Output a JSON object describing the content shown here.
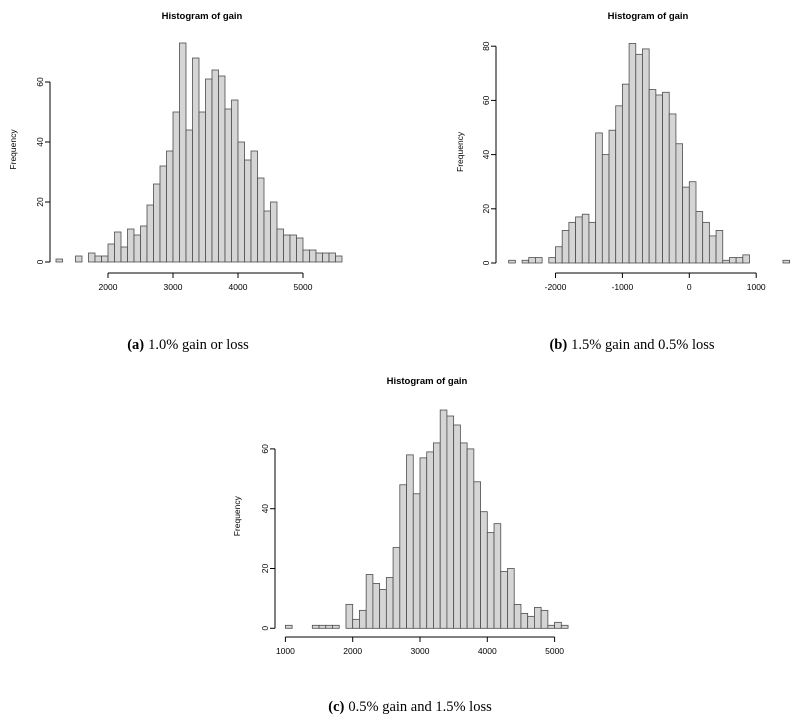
{
  "figure": {
    "background": "#ffffff",
    "bar_fill": "#d5d5d5",
    "bar_stroke": "#4d4d4d",
    "axis_color": "#000000",
    "text_color": "#000000"
  },
  "chart_data": [
    {
      "id": "a",
      "type": "histogram",
      "title": "Histogram of gain",
      "xlabel": "",
      "ylabel": "Frequency",
      "grid": false,
      "bin_start": 1200,
      "bin_width": 100,
      "values": [
        1,
        0,
        0,
        2,
        0,
        3,
        2,
        2,
        6,
        10,
        5,
        11,
        9,
        12,
        19,
        26,
        32,
        37,
        50,
        73,
        44,
        68,
        50,
        61,
        64,
        62,
        51,
        54,
        40,
        34,
        37,
        28,
        17,
        20,
        11,
        9,
        9,
        8,
        4,
        4,
        3,
        3,
        3,
        2
      ],
      "xticks": [
        2000,
        3000,
        4000,
        5000
      ],
      "yticks": [
        0,
        20,
        40,
        60
      ],
      "ylim": [
        0,
        75
      ],
      "xlim": [
        1200,
        5600
      ],
      "caption_label": "(a)",
      "caption_text": "1.0% gain or loss"
    },
    {
      "id": "b",
      "type": "histogram",
      "title": "Histogram of gain",
      "xlabel": "",
      "ylabel": "Frequency",
      "grid": false,
      "bin_start": -2700,
      "bin_width": 100,
      "values": [
        1,
        0,
        1,
        2,
        2,
        0,
        2,
        6,
        12,
        15,
        17,
        18,
        15,
        48,
        40,
        49,
        58,
        66,
        81,
        77,
        79,
        64,
        62,
        63,
        55,
        44,
        28,
        30,
        19,
        15,
        10,
        12,
        1,
        2,
        2,
        3,
        0,
        0,
        0,
        0,
        0,
        1
      ],
      "xticks": [
        -2000,
        -1000,
        0,
        1000
      ],
      "yticks": [
        0,
        20,
        40,
        60,
        80
      ],
      "ylim": [
        0,
        82
      ],
      "xlim": [
        -2700,
        1500
      ],
      "caption_label": "(b)",
      "caption_text": "1.5% gain and 0.5% loss"
    },
    {
      "id": "c",
      "type": "histogram",
      "title": "Histogram of gain",
      "xlabel": "",
      "ylabel": "Frequency",
      "grid": false,
      "bin_start": 1000,
      "bin_width": 100,
      "values": [
        1,
        0,
        0,
        0,
        1,
        1,
        1,
        1,
        0,
        8,
        3,
        6,
        18,
        15,
        13,
        17,
        27,
        48,
        58,
        45,
        57,
        59,
        62,
        73,
        71,
        68,
        62,
        60,
        49,
        39,
        32,
        35,
        19,
        20,
        8,
        5,
        4,
        7,
        6,
        1,
        2,
        1
      ],
      "xticks": [
        1000,
        2000,
        3000,
        4000,
        5000
      ],
      "yticks": [
        0,
        20,
        40,
        60
      ],
      "ylim": [
        0,
        75
      ],
      "xlim": [
        1000,
        5200
      ],
      "caption_label": "(c)",
      "caption_text": "0.5% gain and 1.5% loss"
    }
  ]
}
